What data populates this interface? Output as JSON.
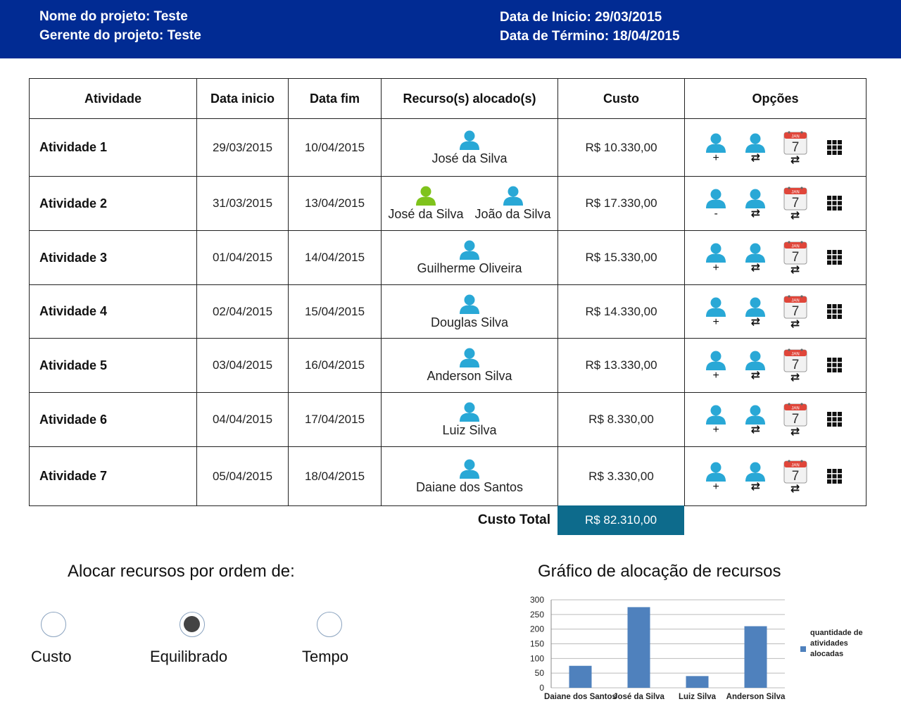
{
  "header": {
    "project_name": "Nome do projeto: Teste",
    "project_manager": "Gerente do projeto: Teste",
    "start_date": "Data de Inicio: 29/03/2015",
    "end_date": "Data de Término: 18/04/2015"
  },
  "table": {
    "headers": [
      "Atividade",
      "Data inicio",
      "Data fim",
      "Recurso(s) alocado(s)",
      "Custo",
      "Opções"
    ],
    "rows": [
      {
        "activity": "Atividade 1",
        "start": "29/03/2015",
        "end": "10/04/2015",
        "resources": [
          "José da Silva"
        ],
        "cost": "R$ 10.330,00",
        "option_symbol": "+"
      },
      {
        "activity": "Atividade 2",
        "start": "31/03/2015",
        "end": "13/04/2015",
        "resources": [
          "José da Silva",
          "João da Silva"
        ],
        "cost": "R$ 17.330,00",
        "option_symbol": "-"
      },
      {
        "activity": "Atividade 3",
        "start": "01/04/2015",
        "end": "14/04/2015",
        "resources": [
          "Guilherme Oliveira"
        ],
        "cost": "R$ 15.330,00",
        "option_symbol": "+"
      },
      {
        "activity": "Atividade 4",
        "start": "02/04/2015",
        "end": "15/04/2015",
        "resources": [
          "Douglas Silva"
        ],
        "cost": "R$ 14.330,00",
        "option_symbol": "+"
      },
      {
        "activity": "Atividade 5",
        "start": "03/04/2015",
        "end": "16/04/2015",
        "resources": [
          "Anderson Silva"
        ],
        "cost": "R$ 13.330,00",
        "option_symbol": "+"
      },
      {
        "activity": "Atividade 6",
        "start": "04/04/2015",
        "end": "17/04/2015",
        "resources": [
          "Luiz Silva"
        ],
        "cost": "R$ 8.330,00",
        "option_symbol": "+"
      },
      {
        "activity": "Atividade 7",
        "start": "05/04/2015",
        "end": "18/04/2015",
        "resources": [
          "Daiane dos Santos"
        ],
        "cost": "R$ 3.330,00",
        "option_symbol": "+"
      }
    ],
    "calendar_month": "JAN",
    "calendar_day": "7",
    "swap_symbol": "⇄"
  },
  "total": {
    "label": "Custo Total",
    "value": "R$ 82.310,00"
  },
  "allocation": {
    "title": "Alocar recursos por ordem de:",
    "options": [
      {
        "label": "Custo",
        "checked": false
      },
      {
        "label": "Equilibrado",
        "checked": true
      },
      {
        "label": "Tempo",
        "checked": false
      }
    ]
  },
  "colors": {
    "header_bg": "#012b93",
    "person_blue": "#29a8d6",
    "person_green": "#7fc31c",
    "total_bg": "#0d6b8c",
    "bar": "#4f81bd"
  },
  "chart_data": {
    "type": "bar",
    "title": "Gráfico de alocação de recursos",
    "categories": [
      "Daiane dos Santos",
      "José da Silva",
      "Luiz Silva",
      "Anderson Silva"
    ],
    "series": [
      {
        "name": "quantidade de atividades alocadas",
        "values": [
          75,
          275,
          40,
          210
        ]
      }
    ],
    "yticks": [
      0,
      50,
      100,
      150,
      200,
      250,
      300
    ],
    "ylim": [
      0,
      300
    ],
    "grid": true,
    "legend": "right"
  }
}
